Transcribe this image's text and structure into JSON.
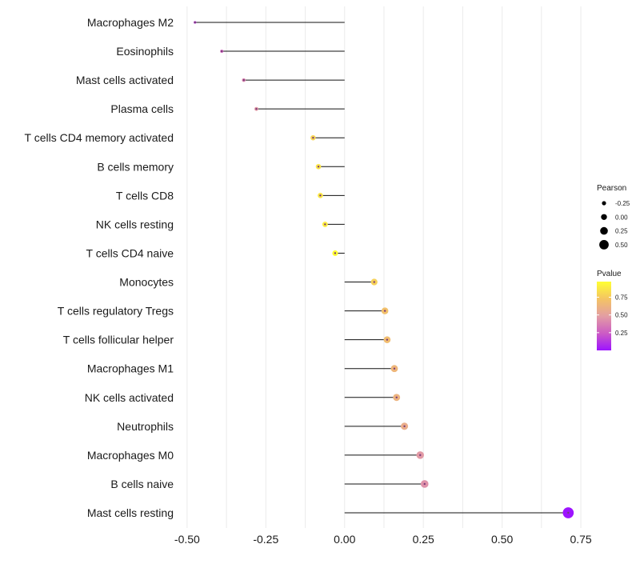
{
  "chart_data": {
    "type": "lollipop",
    "title": "",
    "xlabel": "",
    "ylabel": "",
    "xlim": [
      -0.52,
      0.76
    ],
    "xticks": [
      -0.5,
      -0.25,
      0.0,
      0.25,
      0.5,
      0.75
    ],
    "xtick_labels": [
      "-0.50",
      "-0.25",
      "0.00",
      "0.25",
      "0.50",
      "0.75"
    ],
    "grid": true,
    "categories": [
      "Macrophages M2",
      "Eosinophils",
      "Mast cells activated",
      "Plasma cells",
      "T cells CD4 memory activated",
      "B cells memory",
      "T cells CD8",
      "NK cells resting",
      "T cells CD4 naive",
      "Monocytes",
      "T cells regulatory  Tregs",
      "T cells follicular helper",
      "Macrophages M1",
      "NK cells activated",
      "Neutrophils",
      "Macrophages M0",
      "B cells naive",
      "Mast cells resting"
    ],
    "pearson": [
      -0.475,
      -0.39,
      -0.32,
      -0.28,
      -0.1,
      -0.083,
      -0.077,
      -0.062,
      -0.03,
      0.094,
      0.128,
      0.135,
      0.158,
      0.165,
      0.19,
      0.24,
      0.254,
      0.71
    ],
    "pvalue": [
      0.14,
      0.28,
      0.4,
      0.47,
      0.8,
      0.86,
      0.88,
      0.9,
      0.97,
      0.78,
      0.7,
      0.68,
      0.64,
      0.62,
      0.58,
      0.47,
      0.44,
      0.0005
    ],
    "legend_size": {
      "title": "Pearson",
      "labels": [
        "-0.25",
        "0.00",
        "0.25",
        "0.50"
      ],
      "values": [
        -0.25,
        0.0,
        0.25,
        0.5
      ],
      "position": "right"
    },
    "legend_color": {
      "title": "Pvalue",
      "labels": [
        "0.75",
        "0.50",
        "0.25"
      ],
      "values": [
        0.75,
        0.5,
        0.25
      ],
      "range": [
        0.0,
        0.97
      ],
      "gradient": [
        "#9d14ff",
        "#cc5cc4",
        "#e39ea3",
        "#f4c463",
        "#ffff33"
      ],
      "position": "right"
    }
  }
}
